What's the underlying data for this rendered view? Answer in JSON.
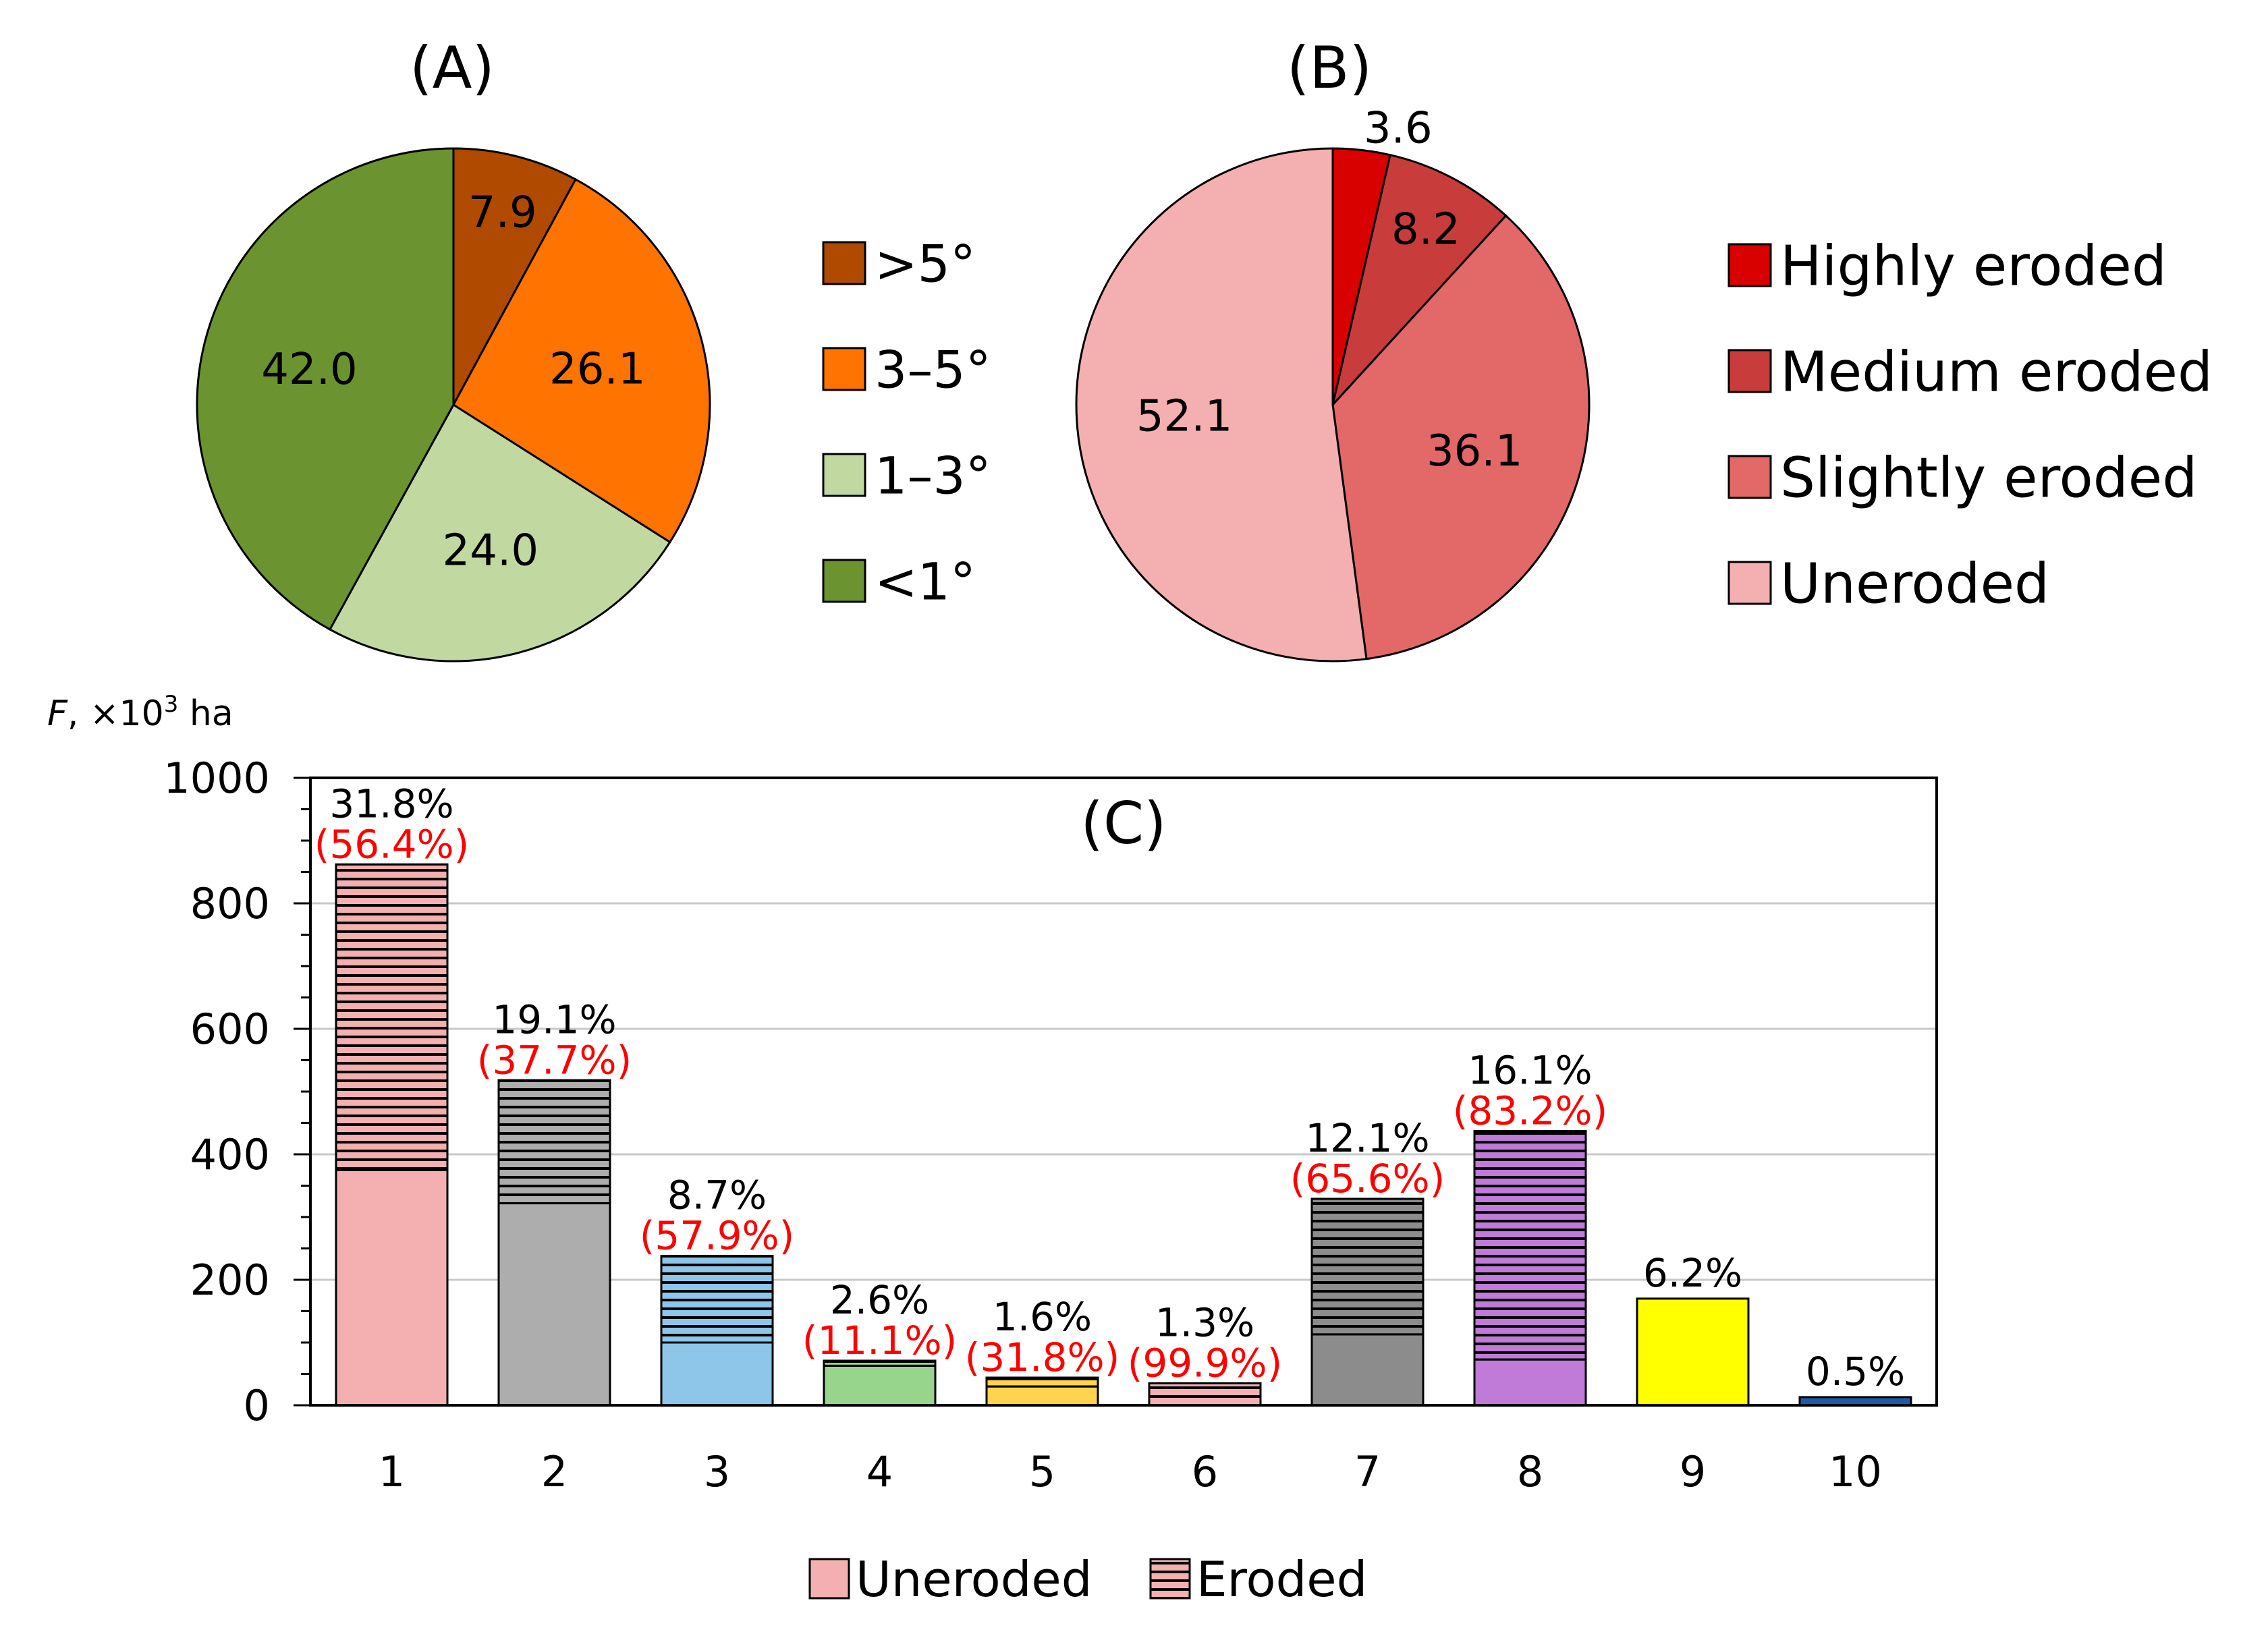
{
  "chart_data": [
    {
      "type": "pie",
      "panel_label": "(A)",
      "slices": [
        {
          "label": ">5°",
          "value": 7.9,
          "value_text": "7.9",
          "color": "#b04a00"
        },
        {
          "label": "3–5°",
          "value": 26.1,
          "value_text": "26.1",
          "color": "#ff7300"
        },
        {
          "label": "1–3°",
          "value": 24.0,
          "value_text": "24.0",
          "color": "#c1d9a0"
        },
        {
          "label": "<1°",
          "value": 42.0,
          "value_text": "42.0",
          "color": "#6b9431"
        }
      ]
    },
    {
      "type": "pie",
      "panel_label": "(B)",
      "slices": [
        {
          "label": "Highly eroded",
          "value": 3.6,
          "value_text": "3.6",
          "color": "#d90000"
        },
        {
          "label": "Medium eroded",
          "value": 8.2,
          "value_text": "8.2",
          "color": "#c93c3c"
        },
        {
          "label": "Slightly eroded",
          "value": 36.1,
          "value_text": "36.1",
          "color": "#e36868"
        },
        {
          "label": "Uneroded",
          "value": 52.1,
          "value_text": "52.1",
          "color": "#f4b0b0"
        }
      ]
    },
    {
      "type": "bar",
      "stacked": true,
      "panel_label": "(C)",
      "ylabel_var": "F",
      "ylabel_unit": ", ×10",
      "ylabel_exp": "3",
      "ylabel_tail": " ha",
      "ylim": [
        0,
        1000
      ],
      "yticks": [
        0,
        200,
        400,
        600,
        800,
        1000
      ],
      "grid": true,
      "categories": [
        "1",
        "2",
        "3",
        "4",
        "5",
        "6",
        "7",
        "8",
        "9",
        "10"
      ],
      "series": [
        {
          "name": "Uneroded",
          "values": [
            375,
            322,
            100,
            63,
            30,
            0,
            113,
            73,
            170,
            13
          ]
        },
        {
          "name": "Eroded",
          "values": [
            487,
            196,
            138,
            8,
            14,
            35,
            216,
            364,
            0,
            0
          ]
        }
      ],
      "colors": [
        "#f4b0b0",
        "#adadad",
        "#8ec6ea",
        "#98d58c",
        "#ffd34d",
        "#f4b0b0",
        "#8c8c8c",
        "#c07ad8",
        "#ffff00",
        "#1e5aa8"
      ],
      "share_labels": [
        "31.8%",
        "19.1%",
        "8.7%",
        "2.6%",
        "1.6%",
        "1.3%",
        "12.1%",
        "16.1%",
        "6.2%",
        "0.5%"
      ],
      "eroded_labels": [
        "(56.4%)",
        "(37.7%)",
        "(57.9%)",
        "(11.1%)",
        "(31.8%)",
        "(99.9%)",
        "(65.6%)",
        "(83.2%)",
        "",
        ""
      ],
      "legend": [
        "Uneroded",
        "Eroded"
      ],
      "legend_position": "bottom"
    }
  ]
}
